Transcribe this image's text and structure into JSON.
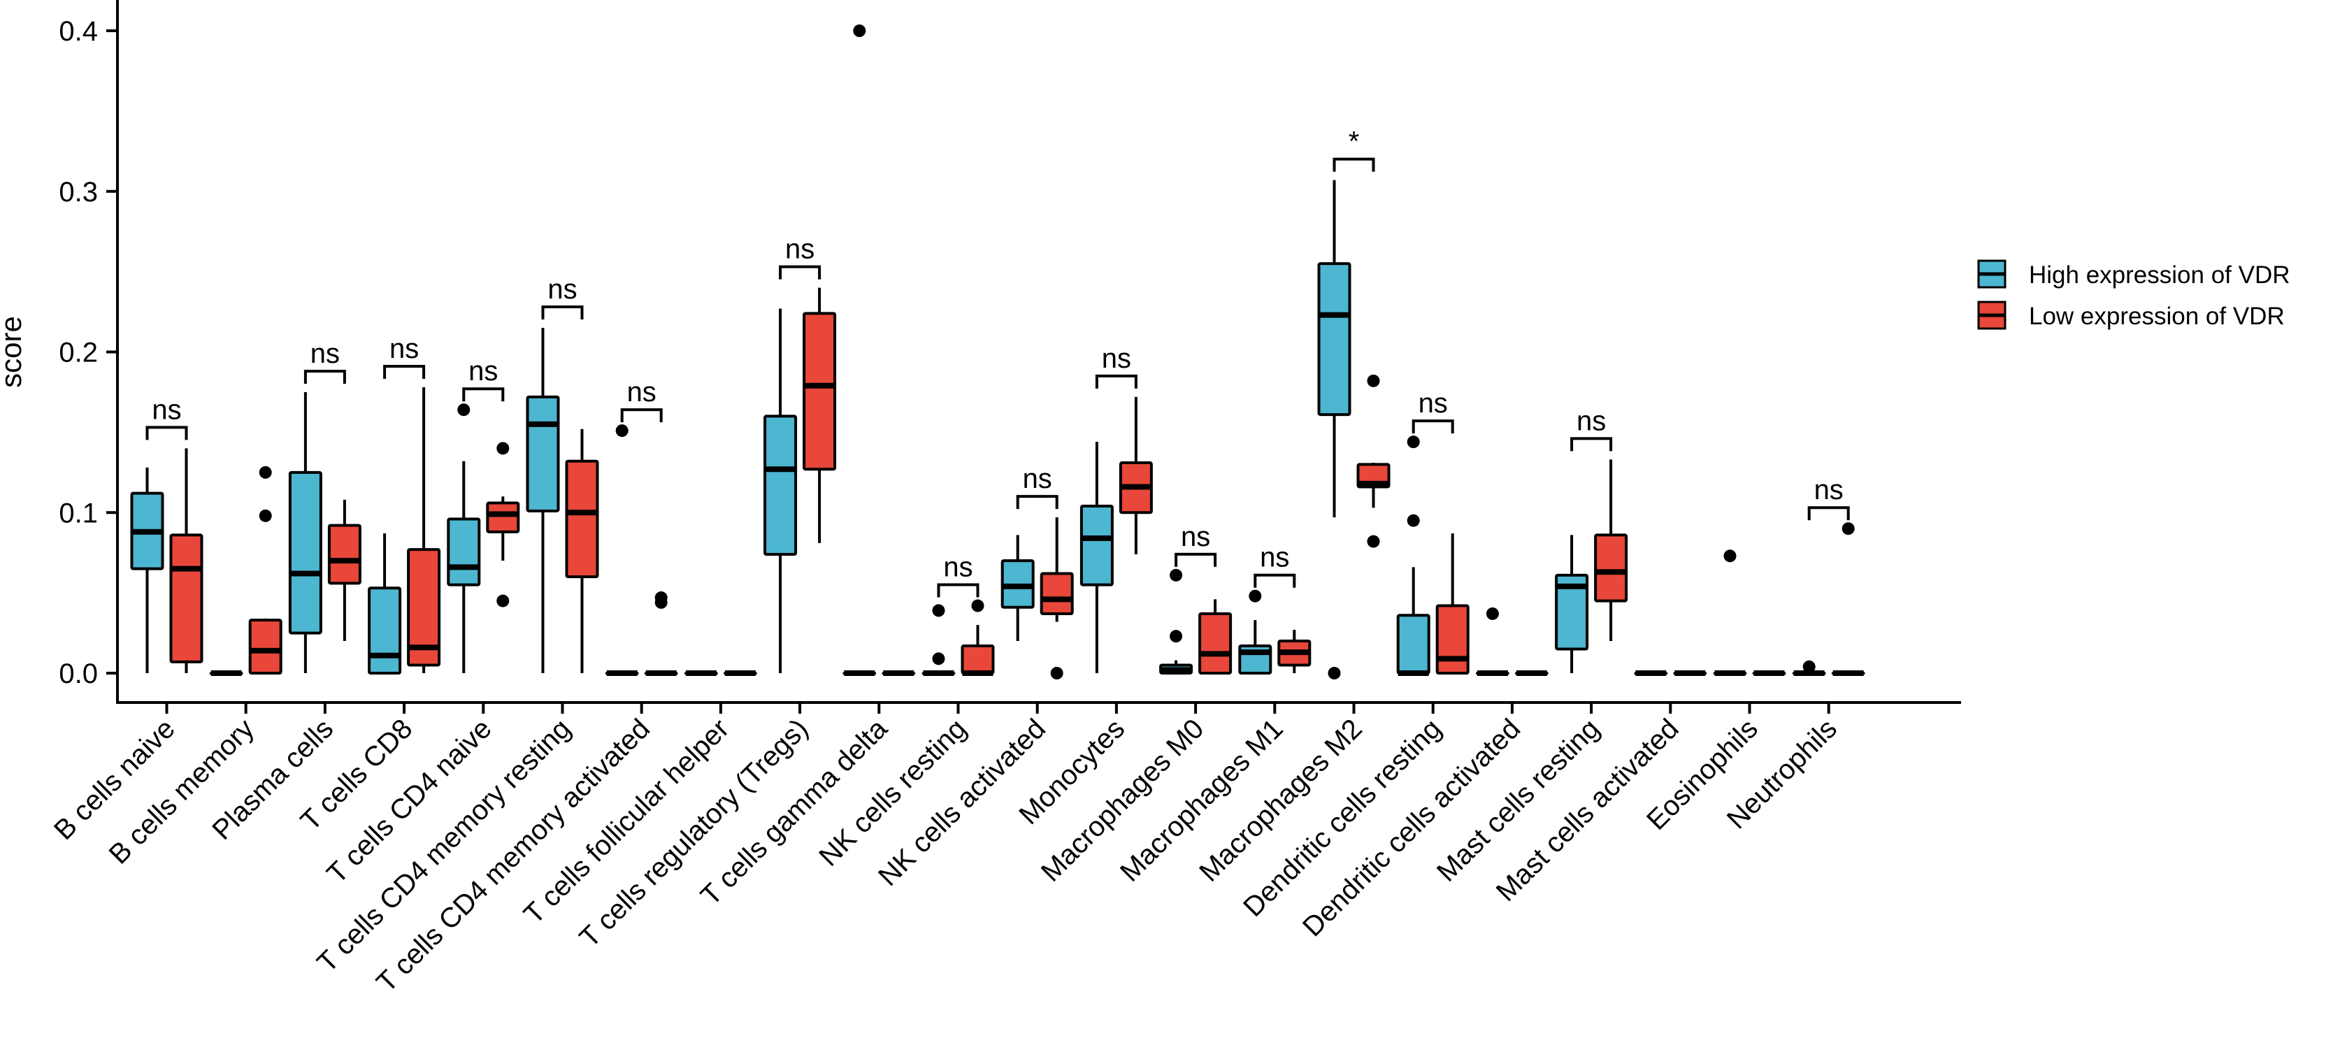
{
  "chart_data": {
    "type": "box",
    "title": "",
    "xlabel": "",
    "ylabel": "score",
    "ylim": [
      -0.02,
      0.415
    ],
    "yticks": [
      "0.0",
      "0.1",
      "0.2",
      "0.3",
      "0.4"
    ],
    "ytick_values": [
      0.0,
      0.1,
      0.2,
      0.3,
      0.4
    ],
    "series_names": [
      "High expression of VDR",
      "Low expression of VDR"
    ],
    "colors": {
      "high": "#4DB6D0",
      "low": "#E8473A",
      "line": "#000000"
    },
    "legend_position": "right",
    "categories": [
      {
        "label": "B cells naive",
        "sig": "ns",
        "high": {
          "q1": 0.065,
          "med": 0.088,
          "q3": 0.112,
          "lo": 0.0,
          "hi": 0.128,
          "out": []
        },
        "low": {
          "q1": 0.007,
          "med": 0.065,
          "q3": 0.086,
          "lo": 0.0,
          "hi": 0.14,
          "out": []
        }
      },
      {
        "label": "B cells memory",
        "sig": "",
        "high": {
          "q1": 0.0,
          "med": 0.0,
          "q3": 0.0,
          "lo": 0.0,
          "hi": 0.0,
          "out": []
        },
        "low": {
          "q1": 0.0,
          "med": 0.014,
          "q3": 0.033,
          "lo": 0.0,
          "hi": 0.034,
          "out": [
            0.125,
            0.098
          ]
        }
      },
      {
        "label": "Plasma cells",
        "sig": "ns",
        "high": {
          "q1": 0.025,
          "med": 0.062,
          "q3": 0.125,
          "lo": 0.0,
          "hi": 0.175,
          "out": []
        },
        "low": {
          "q1": 0.056,
          "med": 0.07,
          "q3": 0.092,
          "lo": 0.02,
          "hi": 0.108,
          "out": []
        }
      },
      {
        "label": "T cells CD8",
        "sig": "ns",
        "high": {
          "q1": 0.0,
          "med": 0.011,
          "q3": 0.053,
          "lo": 0.0,
          "hi": 0.087,
          "out": []
        },
        "low": {
          "q1": 0.005,
          "med": 0.016,
          "q3": 0.077,
          "lo": 0.0,
          "hi": 0.178,
          "out": []
        }
      },
      {
        "label": "T cells CD4 naive",
        "sig": "ns",
        "high": {
          "q1": 0.055,
          "med": 0.066,
          "q3": 0.096,
          "lo": 0.0,
          "hi": 0.132,
          "out": [
            0.164
          ]
        },
        "low": {
          "q1": 0.088,
          "med": 0.099,
          "q3": 0.106,
          "lo": 0.07,
          "hi": 0.11,
          "out": [
            0.14,
            0.045
          ]
        }
      },
      {
        "label": "T cells CD4 memory resting",
        "sig": "ns",
        "high": {
          "q1": 0.101,
          "med": 0.155,
          "q3": 0.172,
          "lo": 0.0,
          "hi": 0.215,
          "out": []
        },
        "low": {
          "q1": 0.06,
          "med": 0.1,
          "q3": 0.132,
          "lo": 0.0,
          "hi": 0.152,
          "out": []
        }
      },
      {
        "label": "T cells CD4 memory activated",
        "sig": "ns",
        "high": {
          "q1": 0.0,
          "med": 0.0,
          "q3": 0.0,
          "lo": 0.0,
          "hi": 0.0,
          "out": [
            0.151
          ]
        },
        "low": {
          "q1": 0.0,
          "med": 0.0,
          "q3": 0.0,
          "lo": 0.0,
          "hi": 0.0,
          "out": [
            0.047,
            0.044
          ]
        }
      },
      {
        "label": "T cells follicular helper",
        "sig": "",
        "high": {
          "q1": 0.0,
          "med": 0.0,
          "q3": 0.0,
          "lo": 0.0,
          "hi": 0.0,
          "out": []
        },
        "low": {
          "q1": 0.0,
          "med": 0.0,
          "q3": 0.0,
          "lo": 0.0,
          "hi": 0.0,
          "out": []
        }
      },
      {
        "label": "T cells regulatory (Tregs)",
        "sig": "ns",
        "high": {
          "q1": 0.074,
          "med": 0.127,
          "q3": 0.16,
          "lo": 0.0,
          "hi": 0.227,
          "out": []
        },
        "low": {
          "q1": 0.127,
          "med": 0.179,
          "q3": 0.224,
          "lo": 0.081,
          "hi": 0.24,
          "out": []
        }
      },
      {
        "label": "T cells gamma delta",
        "sig": "",
        "high": {
          "q1": 0.0,
          "med": 0.0,
          "q3": 0.0,
          "lo": 0.0,
          "hi": 0.0,
          "out": [
            0.4
          ]
        },
        "low": {
          "q1": 0.0,
          "med": 0.0,
          "q3": 0.0,
          "lo": 0.0,
          "hi": 0.0,
          "out": []
        }
      },
      {
        "label": "NK cells resting",
        "sig": "ns",
        "high": {
          "q1": 0.0,
          "med": 0.0,
          "q3": 0.0,
          "lo": 0.0,
          "hi": 0.0,
          "out": [
            0.039,
            0.009
          ]
        },
        "low": {
          "q1": 0.0,
          "med": 0.0,
          "q3": 0.017,
          "lo": 0.0,
          "hi": 0.03,
          "out": [
            0.042
          ]
        }
      },
      {
        "label": "NK cells activated",
        "sig": "ns",
        "high": {
          "q1": 0.041,
          "med": 0.054,
          "q3": 0.07,
          "lo": 0.02,
          "hi": 0.086,
          "out": []
        },
        "low": {
          "q1": 0.037,
          "med": 0.046,
          "q3": 0.062,
          "lo": 0.032,
          "hi": 0.097,
          "out": [
            0.0
          ]
        }
      },
      {
        "label": "Monocytes",
        "sig": "ns",
        "high": {
          "q1": 0.055,
          "med": 0.084,
          "q3": 0.104,
          "lo": 0.0,
          "hi": 0.144,
          "out": []
        },
        "low": {
          "q1": 0.1,
          "med": 0.116,
          "q3": 0.131,
          "lo": 0.074,
          "hi": 0.172,
          "out": []
        }
      },
      {
        "label": "Macrophages M0",
        "sig": "ns",
        "high": {
          "q1": 0.0,
          "med": 0.002,
          "q3": 0.005,
          "lo": 0.0,
          "hi": 0.008,
          "out": [
            0.061,
            0.023
          ]
        },
        "low": {
          "q1": 0.0,
          "med": 0.012,
          "q3": 0.037,
          "lo": 0.0,
          "hi": 0.046,
          "out": []
        }
      },
      {
        "label": "Macrophages M1",
        "sig": "ns",
        "high": {
          "q1": 0.0,
          "med": 0.013,
          "q3": 0.017,
          "lo": 0.0,
          "hi": 0.033,
          "out": [
            0.048
          ]
        },
        "low": {
          "q1": 0.005,
          "med": 0.013,
          "q3": 0.02,
          "lo": 0.0,
          "hi": 0.027,
          "out": []
        }
      },
      {
        "label": "Macrophages M2",
        "sig": "*",
        "high": {
          "q1": 0.161,
          "med": 0.223,
          "q3": 0.255,
          "lo": 0.097,
          "hi": 0.307,
          "out": [
            0.0
          ]
        },
        "low": {
          "q1": 0.116,
          "med": 0.118,
          "q3": 0.13,
          "lo": 0.103,
          "hi": 0.131,
          "out": [
            0.182,
            0.082
          ]
        }
      },
      {
        "label": "Dendritic cells resting",
        "sig": "ns",
        "high": {
          "q1": 0.0,
          "med": 0.0,
          "q3": 0.036,
          "lo": 0.0,
          "hi": 0.066,
          "out": [
            0.144,
            0.095
          ]
        },
        "low": {
          "q1": 0.0,
          "med": 0.009,
          "q3": 0.042,
          "lo": 0.0,
          "hi": 0.087,
          "out": []
        }
      },
      {
        "label": "Dendritic cells activated",
        "sig": "",
        "high": {
          "q1": 0.0,
          "med": 0.0,
          "q3": 0.0,
          "lo": 0.0,
          "hi": 0.0,
          "out": [
            0.037
          ]
        },
        "low": {
          "q1": 0.0,
          "med": 0.0,
          "q3": 0.0,
          "lo": 0.0,
          "hi": 0.0,
          "out": []
        }
      },
      {
        "label": "Mast cells resting",
        "sig": "ns",
        "high": {
          "q1": 0.015,
          "med": 0.054,
          "q3": 0.061,
          "lo": 0.0,
          "hi": 0.086,
          "out": []
        },
        "low": {
          "q1": 0.045,
          "med": 0.063,
          "q3": 0.086,
          "lo": 0.02,
          "hi": 0.133,
          "out": []
        }
      },
      {
        "label": "Mast cells activated",
        "sig": "",
        "high": {
          "q1": 0.0,
          "med": 0.0,
          "q3": 0.0,
          "lo": 0.0,
          "hi": 0.0,
          "out": []
        },
        "low": {
          "q1": 0.0,
          "med": 0.0,
          "q3": 0.0,
          "lo": 0.0,
          "hi": 0.0,
          "out": []
        }
      },
      {
        "label": "Eosinophils",
        "sig": "",
        "high": {
          "q1": 0.0,
          "med": 0.0,
          "q3": 0.0,
          "lo": 0.0,
          "hi": 0.0,
          "out": [
            0.073
          ]
        },
        "low": {
          "q1": 0.0,
          "med": 0.0,
          "q3": 0.0,
          "lo": 0.0,
          "hi": 0.0,
          "out": []
        }
      },
      {
        "label": "Neutrophils",
        "sig": "ns",
        "high": {
          "q1": 0.0,
          "med": 0.0,
          "q3": 0.0,
          "lo": 0.0,
          "hi": 0.0,
          "out": [
            0.004
          ]
        },
        "low": {
          "q1": 0.0,
          "med": 0.0,
          "q3": 0.0,
          "lo": 0.0,
          "hi": 0.0,
          "out": [
            0.09
          ]
        }
      }
    ]
  }
}
